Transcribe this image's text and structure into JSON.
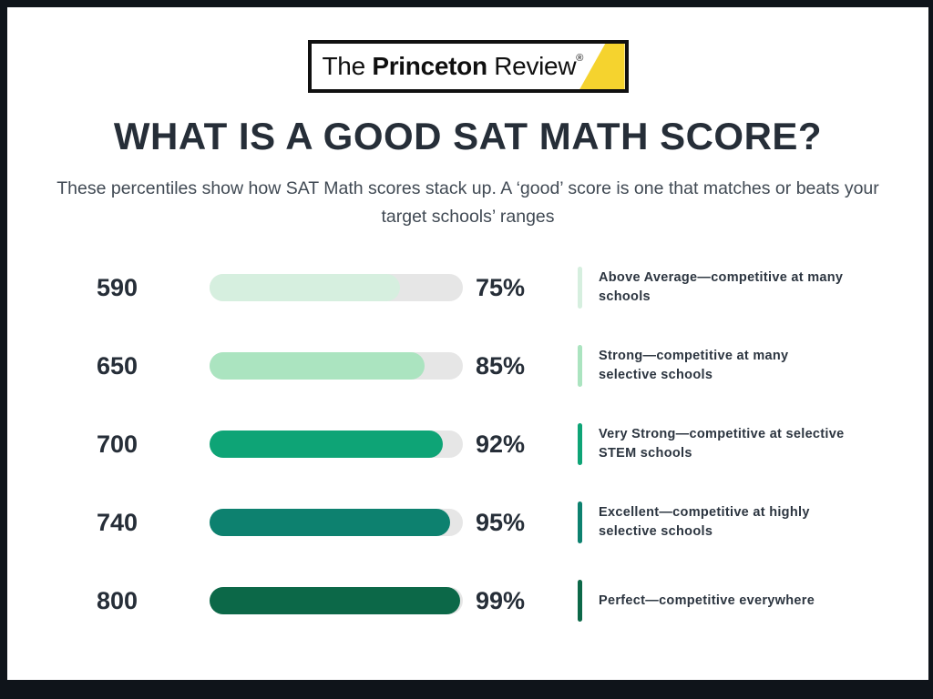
{
  "logo": {
    "the": "The ",
    "princeton": "Princeton",
    "review": " Review",
    "registered": "®",
    "triangle_color": "#f5d32e"
  },
  "title": "WHAT IS A GOOD SAT MATH SCORE?",
  "subtitle": "These percentiles show how SAT Math scores stack up. A ‘good’ score is one that matches or beats your target schools’ ranges",
  "chart_data": {
    "type": "bar",
    "orientation": "horizontal",
    "title": "WHAT IS A GOOD SAT MATH SCORE?",
    "categories": [
      "590",
      "650",
      "700",
      "740",
      "800"
    ],
    "values": [
      75,
      85,
      92,
      95,
      99
    ],
    "value_labels": [
      "75%",
      "85%",
      "92%",
      "95%",
      "99%"
    ],
    "xlim": [
      0,
      100
    ],
    "grid": false,
    "track_color": "#e6e6e6",
    "bar_colors": [
      "#d6efdf",
      "#abe4c0",
      "#0ea476",
      "#0d816f",
      "#0c6848"
    ],
    "annotations": [
      "Above Average—competitive at many schools",
      "Strong—competitive at many selective schools",
      "Very Strong—competitive at selective STEM schools",
      "Excellent—competitive at highly selective schools",
      "Perfect—competitive everywhere"
    ]
  }
}
